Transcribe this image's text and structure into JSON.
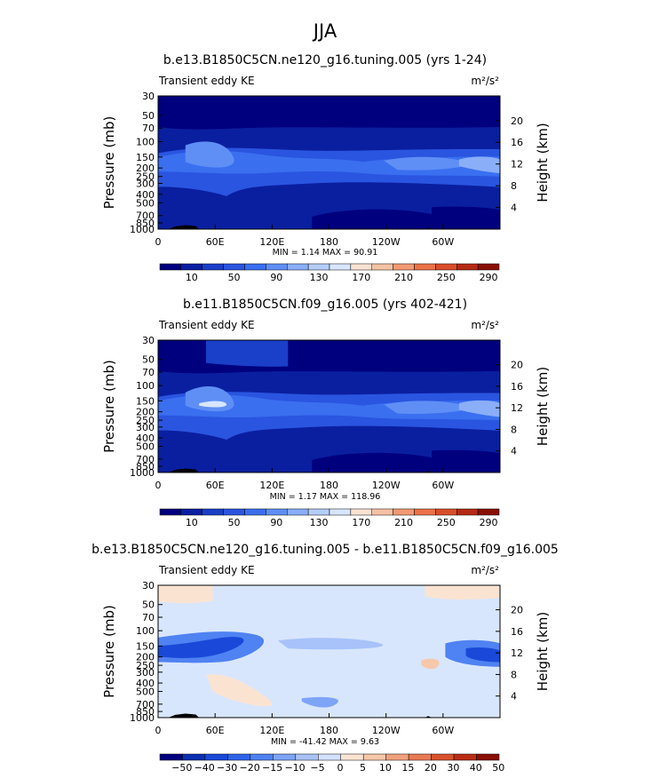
{
  "season": "JJA",
  "colors": {
    "seq": [
      "#00007f",
      "#0a1fa0",
      "#1a3fc8",
      "#2a55e0",
      "#3a6ff0",
      "#5f8ff5",
      "#8aaef8",
      "#b4cdfb",
      "#d8e6fd",
      "#fbe3d2",
      "#f7c2a4",
      "#f29a73",
      "#ec7248",
      "#d94e2a",
      "#b52a14",
      "#8a0f06"
    ],
    "div": [
      "#00007f",
      "#0a2fb0",
      "#1a48d8",
      "#2f63ea",
      "#4f82f2",
      "#7ea4f6",
      "#a8c2fa",
      "#d2e2fd",
      "#fbe3d2",
      "#f7c7aa",
      "#f1a17d",
      "#e87a55",
      "#d9522e",
      "#bb2e16",
      "#8a0f06"
    ],
    "topo": "#000000"
  },
  "chart_data": [
    {
      "type": "heatmap",
      "title": "b.e13.B1850C5CN.ne120_g16.tuning.005 (yrs 1-24)",
      "left_label": "Transient eddy KE",
      "units": "m²/s²",
      "ylabel": "Pressure (mb)",
      "ylabel_right": "Height (km)",
      "y_ticks": [
        "30",
        "50",
        "70",
        "100",
        "150",
        "200",
        "250",
        "300",
        "400",
        "500",
        "700",
        "850",
        "1000"
      ],
      "y_right_ticks": [
        "20",
        "16",
        "12",
        "8",
        "4"
      ],
      "x_ticks": [
        "0",
        "60E",
        "120E",
        "180",
        "120W",
        "60W"
      ],
      "stats": "MIN =    1.14   MAX =   90.91",
      "min": 1.14,
      "max": 90.91,
      "colorbar_labels": [
        "10",
        "50",
        "90",
        "130",
        "170",
        "210",
        "250",
        "290"
      ]
    },
    {
      "type": "heatmap",
      "title": "b.e11.B1850C5CN.f09_g16.005 (yrs 402-421)",
      "left_label": "Transient eddy KE",
      "units": "m²/s²",
      "ylabel": "Pressure (mb)",
      "ylabel_right": "Height (km)",
      "y_ticks": [
        "30",
        "50",
        "70",
        "100",
        "150",
        "200",
        "250",
        "300",
        "400",
        "500",
        "700",
        "850",
        "1000"
      ],
      "y_right_ticks": [
        "20",
        "16",
        "12",
        "8",
        "4"
      ],
      "x_ticks": [
        "0",
        "60E",
        "120E",
        "180",
        "120W",
        "60W"
      ],
      "stats": "MIN =    1.17   MAX =  118.96",
      "min": 1.17,
      "max": 118.96,
      "colorbar_labels": [
        "10",
        "50",
        "90",
        "130",
        "170",
        "210",
        "250",
        "290"
      ]
    },
    {
      "type": "heatmap",
      "title": "b.e13.B1850C5CN.ne120_g16.tuning.005 - b.e11.B1850C5CN.f09_g16.005",
      "left_label": "Transient eddy KE",
      "units": "m²/s²",
      "ylabel": "Pressure (mb)",
      "ylabel_right": "Height (km)",
      "y_ticks": [
        "30",
        "50",
        "70",
        "100",
        "150",
        "200",
        "250",
        "300",
        "400",
        "500",
        "700",
        "850",
        "1000"
      ],
      "y_right_ticks": [
        "20",
        "16",
        "12",
        "8",
        "4"
      ],
      "x_ticks": [
        "0",
        "60E",
        "120E",
        "180",
        "120W",
        "60W"
      ],
      "stats": "MIN = -41.42   MAX =    9.63",
      "min": -41.42,
      "max": 9.63,
      "colorbar_labels": [
        "−50",
        "−40",
        "−30",
        "−20",
        "−15",
        "−10",
        "−5",
        "0",
        "5",
        "10",
        "15",
        "20",
        "30",
        "40",
        "50"
      ]
    }
  ]
}
